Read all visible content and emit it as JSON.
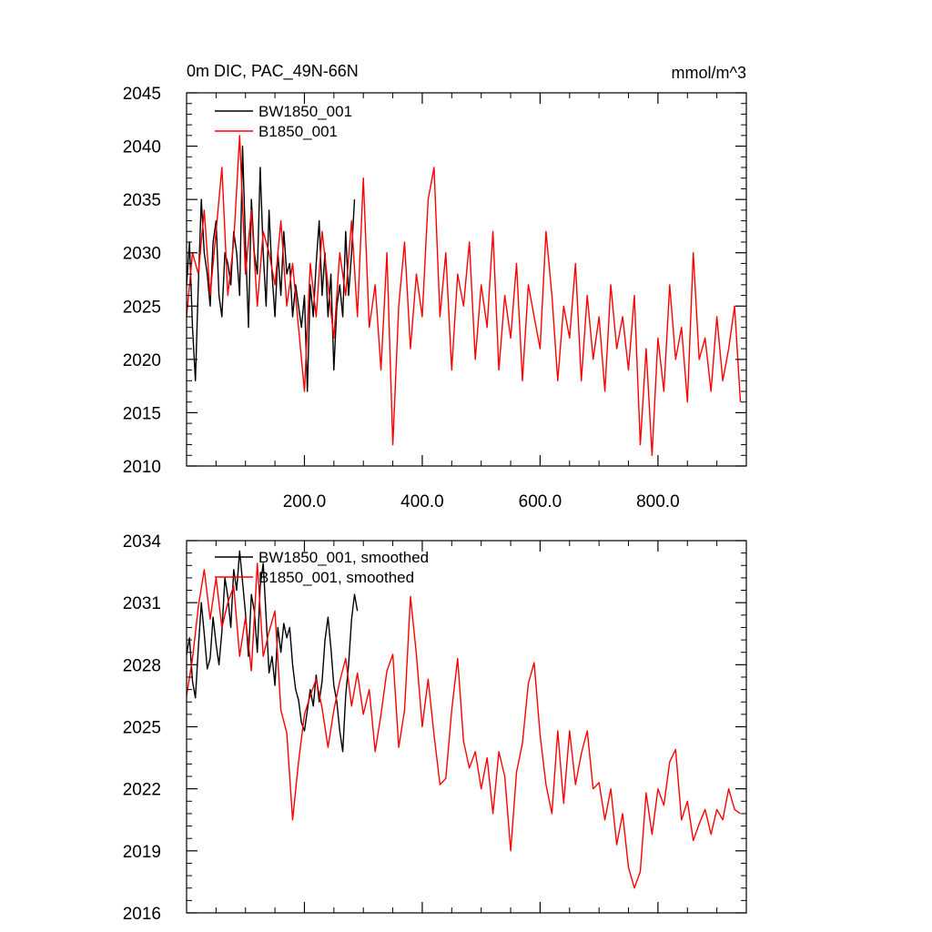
{
  "chart_data": [
    {
      "type": "line",
      "title": "0m DIC, PAC_49N-66N",
      "units": "mmol/m^3",
      "xlim": [
        0,
        950
      ],
      "ylim": [
        2010,
        2045
      ],
      "x_ticks": [
        200,
        400,
        600,
        800
      ],
      "x_tick_labels": [
        "200.0",
        "400.0",
        "600.0",
        "800.0"
      ],
      "y_ticks": [
        2010,
        2015,
        2020,
        2025,
        2030,
        2035,
        2040,
        2045
      ],
      "y_tick_labels": [
        "2010",
        "2015",
        "2020",
        "2025",
        "2030",
        "2035",
        "2040",
        "2045"
      ],
      "legend_position": "top-left",
      "grid": false,
      "series": [
        {
          "name": "BW1850_001",
          "color": "#000000",
          "x": [
            0,
            5,
            10,
            15,
            20,
            25,
            30,
            35,
            40,
            45,
            50,
            55,
            60,
            65,
            70,
            75,
            80,
            85,
            90,
            95,
            100,
            105,
            110,
            115,
            120,
            125,
            130,
            135,
            140,
            145,
            150,
            155,
            160,
            165,
            170,
            175,
            180,
            185,
            190,
            195,
            200,
            205,
            210,
            215,
            220,
            225,
            230,
            235,
            240,
            245,
            250,
            255,
            260,
            265,
            270,
            275,
            280,
            285
          ],
          "y": [
            2027,
            2031,
            2023,
            2018,
            2027,
            2035,
            2030,
            2028,
            2025,
            2031,
            2033,
            2026,
            2024,
            2030,
            2029,
            2027,
            2032,
            2030,
            2026,
            2040,
            2031,
            2023,
            2035,
            2030,
            2028,
            2038,
            2030,
            2025,
            2034,
            2028,
            2024,
            2030,
            2026,
            2032,
            2028,
            2029,
            2024,
            2027,
            2025,
            2023,
            2026,
            2017,
            2027,
            2024,
            2029,
            2033,
            2026,
            2030,
            2024,
            2028,
            2019,
            2025,
            2027,
            2024,
            2032,
            2026,
            2030,
            2035
          ]
        },
        {
          "name": "B1850_001",
          "color": "#ff0000",
          "x": [
            0,
            10,
            20,
            30,
            40,
            50,
            60,
            70,
            80,
            90,
            100,
            110,
            120,
            130,
            140,
            150,
            160,
            170,
            180,
            190,
            200,
            210,
            220,
            230,
            240,
            250,
            260,
            270,
            280,
            290,
            300,
            310,
            320,
            330,
            340,
            350,
            360,
            370,
            380,
            390,
            400,
            410,
            420,
            430,
            440,
            450,
            460,
            470,
            480,
            490,
            500,
            510,
            520,
            530,
            540,
            550,
            560,
            570,
            580,
            590,
            600,
            610,
            620,
            630,
            640,
            650,
            660,
            670,
            680,
            690,
            700,
            710,
            720,
            730,
            740,
            750,
            760,
            770,
            780,
            790,
            800,
            810,
            820,
            830,
            840,
            850,
            860,
            870,
            880,
            890,
            900,
            910,
            920,
            930,
            940
          ],
          "y": [
            2024,
            2030,
            2028,
            2034,
            2026,
            2032,
            2038,
            2026,
            2031,
            2041,
            2028,
            2034,
            2025,
            2032,
            2030,
            2027,
            2033,
            2025,
            2029,
            2023,
            2017,
            2029,
            2024,
            2032,
            2027,
            2022,
            2030,
            2026,
            2033,
            2024,
            2037,
            2023,
            2027,
            2019,
            2030,
            2012,
            2025,
            2031,
            2021,
            2028,
            2024,
            2035,
            2038,
            2024,
            2030,
            2019,
            2028,
            2025,
            2031,
            2020,
            2027,
            2023,
            2032,
            2019,
            2026,
            2022,
            2029,
            2018,
            2027,
            2024,
            2021,
            2032,
            2026,
            2018,
            2025,
            2022,
            2029,
            2018,
            2026,
            2020,
            2024,
            2017,
            2027,
            2021,
            2024,
            2019,
            2026,
            2012,
            2021,
            2011,
            2022,
            2017,
            2027,
            2020,
            2023,
            2016,
            2030,
            2020,
            2022,
            2017,
            2024,
            2018,
            2021,
            2025,
            2016
          ]
        }
      ]
    },
    {
      "type": "line",
      "xlim": [
        0,
        950
      ],
      "ylim": [
        2016,
        2034
      ],
      "y_ticks": [
        2016,
        2019,
        2022,
        2025,
        2028,
        2031,
        2034
      ],
      "y_tick_labels": [
        "2016",
        "2019",
        "2022",
        "2025",
        "2028",
        "2031",
        "2034"
      ],
      "legend_position": "top-left",
      "grid": false,
      "series": [
        {
          "name": "BW1850_001, smoothed",
          "color": "#000000",
          "x": [
            0,
            5,
            10,
            15,
            20,
            25,
            30,
            35,
            40,
            45,
            50,
            55,
            60,
            65,
            70,
            75,
            80,
            85,
            90,
            95,
            100,
            105,
            110,
            115,
            120,
            125,
            130,
            135,
            140,
            145,
            150,
            155,
            160,
            165,
            170,
            175,
            180,
            185,
            190,
            195,
            200,
            205,
            210,
            215,
            220,
            225,
            230,
            235,
            240,
            245,
            250,
            255,
            260,
            265,
            270,
            275,
            280,
            285,
            290
          ],
          "y": [
            2028.5,
            2029.3,
            2027.2,
            2026.4,
            2028.8,
            2031.0,
            2029.5,
            2027.8,
            2028.3,
            2030.3,
            2029.0,
            2028.0,
            2029.6,
            2032.2,
            2031.3,
            2029.8,
            2032.6,
            2031.6,
            2033.5,
            2032.0,
            2030.5,
            2028.4,
            2031.4,
            2030.6,
            2028.6,
            2031.8,
            2032.9,
            2030.3,
            2027.6,
            2028.4,
            2027.0,
            2029.8,
            2028.6,
            2030.0,
            2029.3,
            2029.8,
            2028.0,
            2026.8,
            2026.3,
            2025.2,
            2024.8,
            2025.8,
            2026.8,
            2026.0,
            2027.5,
            2026.2,
            2027.2,
            2029.2,
            2030.3,
            2028.8,
            2027.0,
            2026.2,
            2024.8,
            2023.8,
            2026.5,
            2028.0,
            2030.2,
            2031.4,
            2030.6
          ]
        },
        {
          "name": "B1850_001, smoothed",
          "color": "#ff0000",
          "x": [
            0,
            10,
            20,
            30,
            40,
            50,
            60,
            70,
            80,
            90,
            100,
            110,
            120,
            130,
            140,
            150,
            160,
            170,
            180,
            190,
            200,
            210,
            220,
            230,
            240,
            250,
            260,
            270,
            280,
            290,
            300,
            310,
            320,
            330,
            340,
            350,
            360,
            370,
            380,
            390,
            400,
            410,
            420,
            430,
            440,
            450,
            460,
            470,
            480,
            490,
            500,
            510,
            520,
            530,
            540,
            550,
            560,
            570,
            580,
            590,
            600,
            610,
            620,
            630,
            640,
            650,
            660,
            670,
            680,
            690,
            700,
            710,
            720,
            730,
            740,
            750,
            760,
            770,
            780,
            790,
            800,
            810,
            820,
            830,
            840,
            850,
            860,
            870,
            880,
            890,
            900,
            910,
            920,
            930,
            940
          ],
          "y": [
            2026.5,
            2028.3,
            2030.8,
            2032.6,
            2030.2,
            2032.2,
            2029.8,
            2031.0,
            2031.8,
            2028.4,
            2030.3,
            2027.7,
            2032.9,
            2028.4,
            2029.6,
            2030.6,
            2025.8,
            2024.7,
            2020.5,
            2023.3,
            2025.6,
            2026.5,
            2027.3,
            2025.9,
            2024.0,
            2025.8,
            2027.2,
            2028.3,
            2026.0,
            2027.6,
            2025.6,
            2026.8,
            2023.8,
            2025.6,
            2027.7,
            2028.5,
            2024.0,
            2025.8,
            2031.3,
            2028.5,
            2025.0,
            2027.3,
            2024.6,
            2022.2,
            2022.5,
            2025.8,
            2028.3,
            2024.3,
            2023.0,
            2023.8,
            2022.0,
            2023.5,
            2020.8,
            2023.8,
            2022.6,
            2019.0,
            2022.8,
            2024.2,
            2027.1,
            2028.1,
            2024.6,
            2022.2,
            2020.8,
            2024.8,
            2021.3,
            2024.8,
            2022.2,
            2023.7,
            2024.8,
            2022.0,
            2022.3,
            2020.5,
            2022.0,
            2019.3,
            2020.8,
            2018.2,
            2017.2,
            2018.0,
            2021.8,
            2019.8,
            2022.0,
            2021.2,
            2023.3,
            2023.9,
            2020.5,
            2021.4,
            2019.5,
            2020.3,
            2021.0,
            2019.8,
            2021.0,
            2020.5,
            2022.0,
            2021.0,
            2020.8
          ]
        }
      ]
    }
  ]
}
